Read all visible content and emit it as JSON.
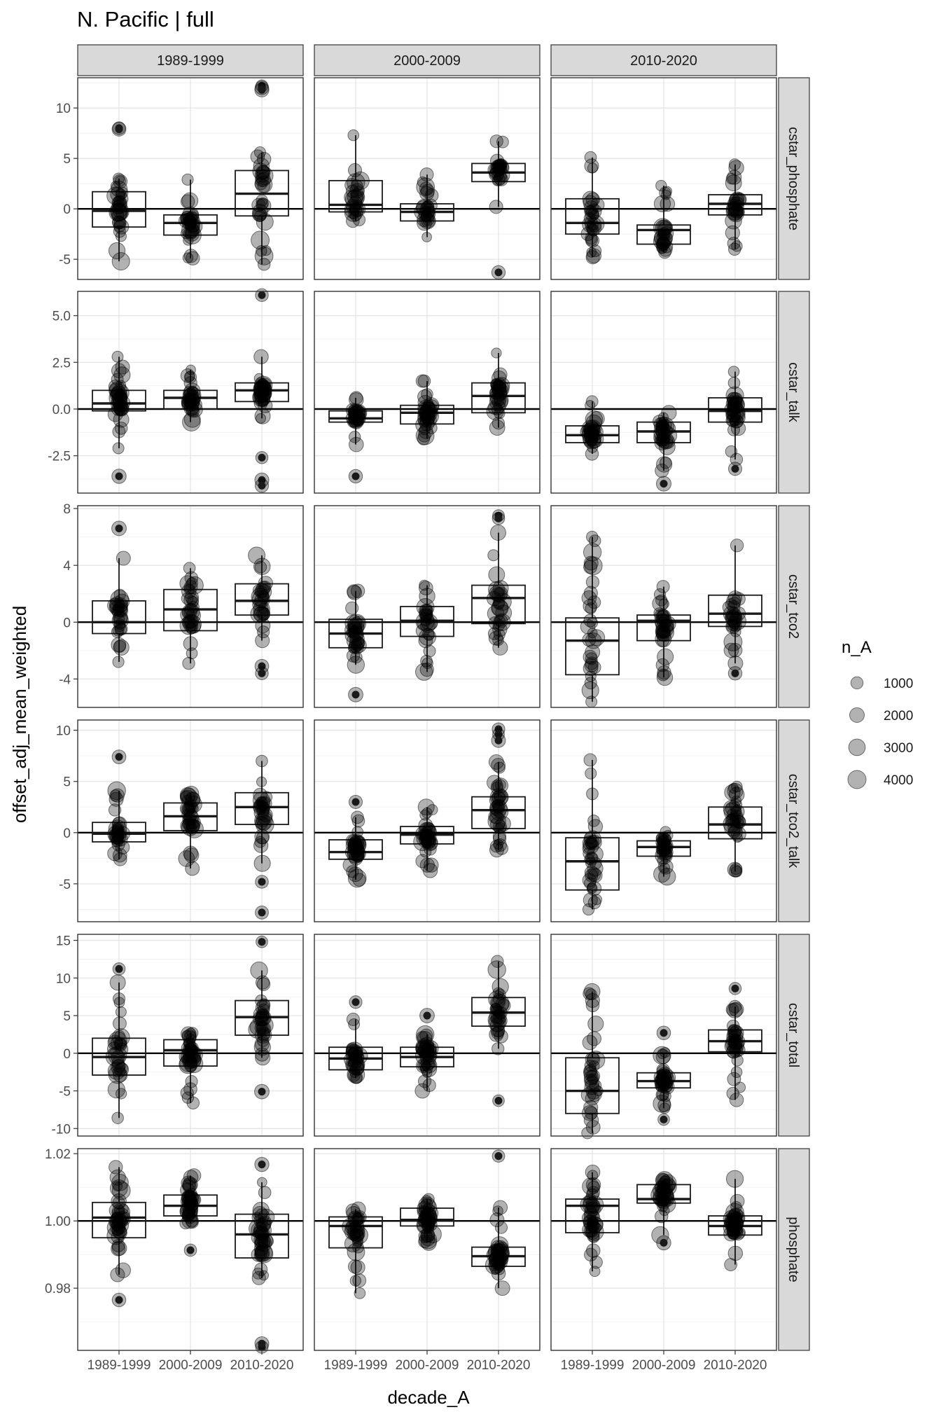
{
  "title": "N. Pacific | full",
  "chart_data": {
    "type": "boxplot+scatter",
    "title": "N. Pacific | full",
    "xlabel": "decade_A",
    "ylabel": "offset_adj_mean_weighted",
    "col_facets": [
      "1989-1999",
      "2000-2009",
      "2010-2020"
    ],
    "row_facets": [
      "cstar_phosphate",
      "cstar_talk",
      "cstar_tco2",
      "cstar_tco2_talk",
      "cstar_total",
      "phosphate"
    ],
    "categories": [
      "1989-1999",
      "2000-2009",
      "2010-2020"
    ],
    "reference_line": {
      "cstar_phosphate": 0,
      "cstar_talk": 0,
      "cstar_tco2": 0,
      "cstar_tco2_talk": 0,
      "cstar_total": 0,
      "phosphate": 1.0
    },
    "legend": {
      "title": "n_A",
      "position": "right",
      "entries": [
        {
          "label": "1000",
          "value": 1000
        },
        {
          "label": "2000",
          "value": 2000
        },
        {
          "label": "3000",
          "value": 3000
        },
        {
          "label": "4000",
          "value": 4000
        }
      ]
    },
    "rows": [
      {
        "name": "cstar_phosphate",
        "ylim": [
          -7.0,
          13.0
        ],
        "yticks": [
          -5,
          0,
          5,
          10
        ],
        "ytick_labels": [
          "-5",
          "0",
          "5",
          "10"
        ],
        "minor_ticks": [
          -2.5,
          2.5,
          7.5,
          12.5
        ],
        "panels": [
          {
            "boxes": [
              {
                "q1": -1.8,
                "median": -0.2,
                "q3": 1.7,
                "wmin": -5.2,
                "wmax": 3.0
              },
              {
                "q1": -2.6,
                "median": -1.4,
                "q3": -0.6,
                "wmin": -4.9,
                "wmax": 2.9
              },
              {
                "q1": -0.7,
                "median": 1.5,
                "q3": 3.8,
                "wmin": -5.5,
                "wmax": 5.6
              }
            ],
            "outliers": [
              [
                0,
                8.0
              ],
              [
                0,
                7.9
              ],
              [
                2,
                12.2
              ],
              [
                2,
                12.0
              ],
              [
                2,
                11.8
              ]
            ]
          },
          {
            "boxes": [
              {
                "q1": -0.3,
                "median": 0.4,
                "q3": 2.8,
                "wmin": -1.2,
                "wmax": 7.3
              },
              {
                "q1": -1.2,
                "median": -0.3,
                "q3": 0.5,
                "wmin": -2.8,
                "wmax": 3.4
              },
              {
                "q1": 2.7,
                "median": 3.6,
                "q3": 4.5,
                "wmin": 0.2,
                "wmax": 6.7
              }
            ],
            "outliers": [
              [
                2,
                -6.3
              ]
            ]
          },
          {
            "boxes": [
              {
                "q1": -2.5,
                "median": -1.4,
                "q3": 1.0,
                "wmin": -4.8,
                "wmax": 5.1
              },
              {
                "q1": -3.5,
                "median": -2.1,
                "q3": -1.6,
                "wmin": -4.3,
                "wmax": 2.3
              },
              {
                "q1": -0.6,
                "median": 0.5,
                "q3": 1.4,
                "wmin": -4.0,
                "wmax": 4.4
              }
            ],
            "outliers": []
          }
        ]
      },
      {
        "name": "cstar_talk",
        "ylim": [
          -4.5,
          6.3
        ],
        "yticks": [
          -2.5,
          0.0,
          2.5,
          5.0
        ],
        "ytick_labels": [
          "-2.5",
          "0.0",
          "2.5",
          "5.0"
        ],
        "minor_ticks": [
          -3.75,
          -1.25,
          1.25,
          3.75
        ],
        "panels": [
          {
            "boxes": [
              {
                "q1": -0.1,
                "median": 0.3,
                "q3": 1.0,
                "wmin": -2.1,
                "wmax": 2.8
              },
              {
                "q1": 0.0,
                "median": 0.6,
                "q3": 1.0,
                "wmin": -0.7,
                "wmax": 2.1
              },
              {
                "q1": 0.4,
                "median": 1.0,
                "q3": 1.4,
                "wmin": -0.5,
                "wmax": 2.8
              }
            ],
            "outliers": [
              [
                0,
                -3.6
              ],
              [
                2,
                6.1
              ],
              [
                2,
                -2.6
              ],
              [
                2,
                -3.8
              ],
              [
                2,
                -4.1
              ]
            ]
          },
          {
            "boxes": [
              {
                "q1": -0.7,
                "median": -0.5,
                "q3": -0.1,
                "wmin": -1.9,
                "wmax": 0.6
              },
              {
                "q1": -0.8,
                "median": -0.2,
                "q3": 0.2,
                "wmin": -1.6,
                "wmax": 1.5
              },
              {
                "q1": -0.2,
                "median": 0.7,
                "q3": 1.4,
                "wmin": -1.0,
                "wmax": 3.0
              }
            ],
            "outliers": [
              [
                0,
                -3.6
              ]
            ]
          },
          {
            "boxes": [
              {
                "q1": -1.8,
                "median": -1.4,
                "q3": -0.9,
                "wmin": -2.4,
                "wmax": 0.4
              },
              {
                "q1": -1.8,
                "median": -1.2,
                "q3": -0.7,
                "wmin": -3.3,
                "wmax": -0.2
              },
              {
                "q1": -0.7,
                "median": -0.1,
                "q3": 0.6,
                "wmin": -2.7,
                "wmax": 2.0
              }
            ],
            "outliers": [
              [
                1,
                -4.0
              ],
              [
                2,
                -3.2
              ]
            ]
          }
        ]
      },
      {
        "name": "cstar_tco2",
        "ylim": [
          -6.0,
          8.2
        ],
        "yticks": [
          -4,
          0,
          4,
          8
        ],
        "ytick_labels": [
          "-4",
          "0",
          "4",
          "8"
        ],
        "minor_ticks": [
          -6,
          -2,
          2,
          6
        ],
        "panels": [
          {
            "boxes": [
              {
                "q1": -0.8,
                "median": 0.0,
                "q3": 1.5,
                "wmin": -2.8,
                "wmax": 4.5
              },
              {
                "q1": -0.6,
                "median": 0.9,
                "q3": 2.3,
                "wmin": -2.9,
                "wmax": 3.8
              },
              {
                "q1": 0.5,
                "median": 1.5,
                "q3": 2.7,
                "wmin": -1.3,
                "wmax": 4.7
              }
            ],
            "outliers": [
              [
                0,
                6.6
              ],
              [
                2,
                -3.1
              ],
              [
                2,
                -3.6
              ]
            ]
          },
          {
            "boxes": [
              {
                "q1": -1.8,
                "median": -0.8,
                "q3": 0.2,
                "wmin": -3.0,
                "wmax": 2.2
              },
              {
                "q1": -1.0,
                "median": 0.1,
                "q3": 1.1,
                "wmin": -3.5,
                "wmax": 2.6
              },
              {
                "q1": -0.1,
                "median": 1.7,
                "q3": 2.6,
                "wmin": -1.8,
                "wmax": 6.3
              }
            ],
            "outliers": [
              [
                0,
                -5.1
              ],
              [
                2,
                7.5
              ],
              [
                2,
                7.3
              ]
            ]
          },
          {
            "boxes": [
              {
                "q1": -3.7,
                "median": -1.3,
                "q3": 0.3,
                "wmin": -5.6,
                "wmax": 6.0
              },
              {
                "q1": -1.3,
                "median": 0.1,
                "q3": 0.5,
                "wmin": -3.9,
                "wmax": 2.5
              },
              {
                "q1": -0.3,
                "median": 0.6,
                "q3": 1.9,
                "wmin": -2.9,
                "wmax": 5.4
              }
            ],
            "outliers": [
              [
                2,
                -3.6
              ]
            ]
          }
        ]
      },
      {
        "name": "cstar_tco2_talk",
        "ylim": [
          -8.7,
          11.0
        ],
        "yticks": [
          -5,
          0,
          5,
          10
        ],
        "ytick_labels": [
          "-5",
          "0",
          "5",
          "10"
        ],
        "minor_ticks": [
          -7.5,
          -2.5,
          2.5,
          7.5
        ],
        "panels": [
          {
            "boxes": [
              {
                "q1": -0.9,
                "median": -0.1,
                "q3": 1.0,
                "wmin": -2.6,
                "wmax": 4.1
              },
              {
                "q1": 0.2,
                "median": 1.6,
                "q3": 2.9,
                "wmin": -3.5,
                "wmax": 3.8
              },
              {
                "q1": 0.8,
                "median": 2.5,
                "q3": 3.9,
                "wmin": -3.0,
                "wmax": 7.0
              }
            ],
            "outliers": [
              [
                0,
                7.4
              ],
              [
                2,
                -4.8
              ],
              [
                2,
                -7.8
              ]
            ]
          },
          {
            "boxes": [
              {
                "q1": -2.6,
                "median": -1.9,
                "q3": -0.7,
                "wmin": -4.6,
                "wmax": 1.5
              },
              {
                "q1": -1.1,
                "median": -0.2,
                "q3": 0.6,
                "wmin": -3.7,
                "wmax": 2.5
              },
              {
                "q1": 0.4,
                "median": 2.2,
                "q3": 3.5,
                "wmin": -1.7,
                "wmax": 6.9
              }
            ],
            "outliers": [
              [
                0,
                3.0
              ],
              [
                2,
                10.1
              ],
              [
                2,
                9.6
              ],
              [
                2,
                9.0
              ]
            ]
          },
          {
            "boxes": [
              {
                "q1": -5.6,
                "median": -2.8,
                "q3": -0.5,
                "wmin": -7.5,
                "wmax": 7.1
              },
              {
                "q1": -2.3,
                "median": -1.4,
                "q3": -0.8,
                "wmin": -4.3,
                "wmax": 0.1
              },
              {
                "q1": -0.6,
                "median": 0.8,
                "q3": 2.5,
                "wmin": -3.8,
                "wmax": 4.5
              }
            ],
            "outliers": []
          }
        ]
      },
      {
        "name": "cstar_total",
        "ylim": [
          -11.0,
          15.8
        ],
        "yticks": [
          -10,
          -5,
          0,
          5,
          10,
          15
        ],
        "ytick_labels": [
          "-10",
          "-5",
          "0",
          "5",
          "10",
          "15"
        ],
        "minor_ticks": [
          -7.5,
          -2.5,
          2.5,
          7.5,
          12.5
        ],
        "panels": [
          {
            "boxes": [
              {
                "q1": -2.9,
                "median": -0.5,
                "q3": 2.0,
                "wmin": -8.6,
                "wmax": 9.4
              },
              {
                "q1": -1.7,
                "median": 0.4,
                "q3": 1.8,
                "wmin": -6.6,
                "wmax": 2.7
              },
              {
                "q1": 2.4,
                "median": 4.8,
                "q3": 7.0,
                "wmin": -0.6,
                "wmax": 11.0
              }
            ],
            "outliers": [
              [
                0,
                11.2
              ],
              [
                2,
                14.8
              ],
              [
                2,
                -5.1
              ]
            ]
          },
          {
            "boxes": [
              {
                "q1": -2.2,
                "median": -0.7,
                "q3": 0.8,
                "wmin": -3.3,
                "wmax": 4.5
              },
              {
                "q1": -1.8,
                "median": -0.5,
                "q3": 0.8,
                "wmin": -5.0,
                "wmax": 2.5
              },
              {
                "q1": 3.6,
                "median": 5.4,
                "q3": 7.4,
                "wmin": 0.6,
                "wmax": 12.2
              }
            ],
            "outliers": [
              [
                0,
                6.8
              ],
              [
                1,
                5.0
              ],
              [
                2,
                -6.3
              ]
            ]
          },
          {
            "boxes": [
              {
                "q1": -8.0,
                "median": -5.0,
                "q3": -0.6,
                "wmin": -10.6,
                "wmax": 8.2
              },
              {
                "q1": -4.6,
                "median": -3.7,
                "q3": -2.6,
                "wmin": -7.3,
                "wmax": 0.1
              },
              {
                "q1": 0.2,
                "median": 1.6,
                "q3": 3.1,
                "wmin": -6.2,
                "wmax": 6.2
              }
            ],
            "outliers": [
              [
                1,
                2.7
              ],
              [
                1,
                -8.8
              ],
              [
                2,
                8.6
              ]
            ]
          }
        ]
      },
      {
        "name": "phosphate",
        "ylim": [
          0.9615,
          1.0215
        ],
        "yticks": [
          0.98,
          1.0,
          1.02
        ],
        "ytick_labels": [
          "0.98",
          "1.00",
          "1.02"
        ],
        "minor_ticks": [
          0.97,
          0.99,
          1.01
        ],
        "panels": [
          {
            "boxes": [
              {
                "q1": 0.995,
                "median": 1.001,
                "q3": 1.0055,
                "wmin": 0.984,
                "wmax": 1.016
              },
              {
                "q1": 1.0015,
                "median": 1.0045,
                "q3": 1.0077,
                "wmin": 0.9993,
                "wmax": 1.0135
              },
              {
                "q1": 0.989,
                "median": 0.996,
                "q3": 1.002,
                "wmin": 0.983,
                "wmax": 1.0115
              }
            ],
            "outliers": [
              [
                0,
                0.9765
              ],
              [
                1,
                0.9913
              ],
              [
                2,
                0.9625
              ],
              [
                2,
                0.9635
              ],
              [
                2,
                1.0168
              ]
            ]
          },
          {
            "boxes": [
              {
                "q1": 0.992,
                "median": 0.9985,
                "q3": 1.0012,
                "wmin": 0.9785,
                "wmax": 1.0035
              },
              {
                "q1": 0.9985,
                "median": 1.0003,
                "q3": 1.0038,
                "wmin": 0.9935,
                "wmax": 1.0065
              },
              {
                "q1": 0.9865,
                "median": 0.9895,
                "q3": 0.9922,
                "wmin": 0.98,
                "wmax": 1.004
              }
            ],
            "outliers": [
              [
                2,
                1.0193
              ]
            ]
          },
          {
            "boxes": [
              {
                "q1": 0.9965,
                "median": 1.0045,
                "q3": 1.0065,
                "wmin": 0.985,
                "wmax": 1.0145
              },
              {
                "q1": 1.0053,
                "median": 1.0065,
                "q3": 1.0108,
                "wmin": 0.9958,
                "wmax": 1.0122
              },
              {
                "q1": 0.9958,
                "median": 0.9985,
                "q3": 1.0015,
                "wmin": 0.987,
                "wmax": 1.0125
              }
            ],
            "outliers": [
              [
                1,
                0.9935
              ]
            ]
          }
        ]
      }
    ]
  }
}
